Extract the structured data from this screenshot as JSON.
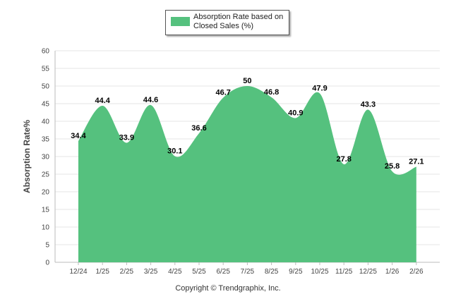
{
  "chart_data": {
    "type": "area",
    "title": "",
    "legend": [
      "Absorption Rate based on Closed Sales (%)"
    ],
    "legend_placement": "top-center",
    "xlabel": "",
    "ylabel": "Absorption Rate%",
    "categories": [
      "12/24",
      "1/25",
      "2/25",
      "3/25",
      "4/25",
      "5/25",
      "6/25",
      "7/25",
      "8/25",
      "9/25",
      "10/25",
      "11/25",
      "12/25",
      "1/26",
      "2/26"
    ],
    "series": [
      {
        "name": "Absorption Rate based on Closed Sales (%)",
        "values": [
          34.4,
          44.4,
          33.9,
          44.6,
          30.1,
          36.6,
          46.7,
          50,
          46.8,
          40.9,
          47.9,
          27.8,
          43.3,
          25.8,
          27.1
        ]
      }
    ],
    "labels": [
      "34.4",
      "44.4",
      "33.9",
      "44.6",
      "30.1",
      "36.6",
      "46.7",
      "50",
      "46.8",
      "40.9",
      "47.9",
      "27.8",
      "43.3",
      "25.8",
      "27.1"
    ],
    "yticks": [
      "0",
      "5",
      "10",
      "15",
      "20",
      "25",
      "30",
      "35",
      "40",
      "45",
      "50",
      "55",
      "60"
    ],
    "ylim": [
      0,
      60
    ],
    "grid": true,
    "colors": {
      "fill": "#55c17e",
      "grid": "#e6e6e6",
      "axis": "#bbbbbb"
    }
  },
  "footer": {
    "copyright": "Copyright © Trendgraphix, Inc."
  }
}
